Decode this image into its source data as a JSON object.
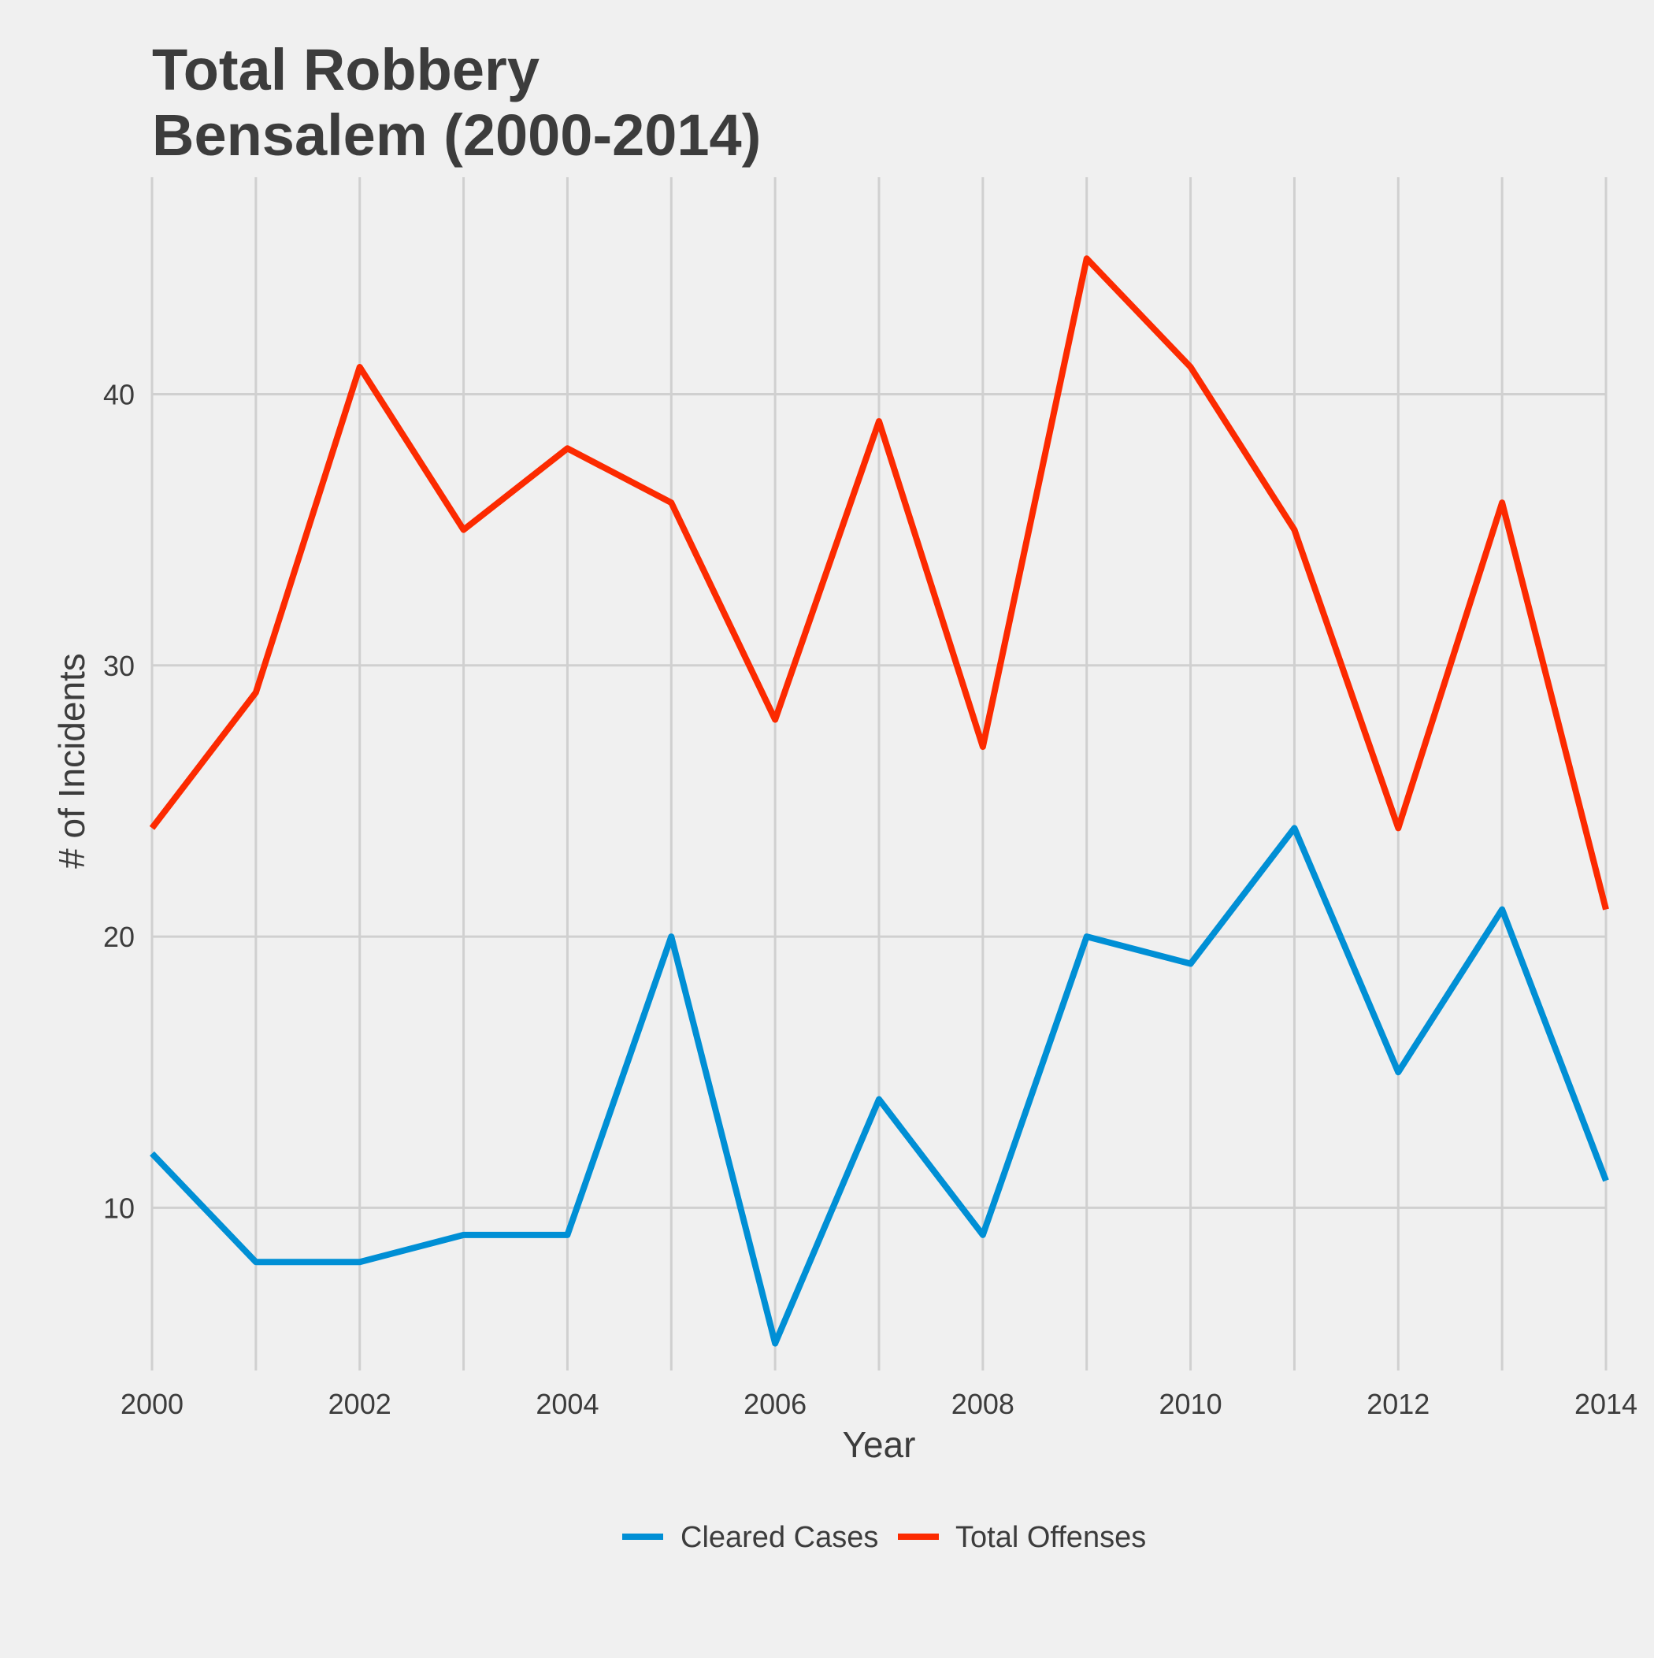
{
  "chart_data": {
    "type": "line",
    "title_lines": [
      "Total Robbery",
      "Bensalem (2000-2014)"
    ],
    "xlabel": "Year",
    "ylabel": "# of Incidents",
    "x": [
      2000,
      2001,
      2002,
      2003,
      2004,
      2005,
      2006,
      2007,
      2008,
      2009,
      2010,
      2011,
      2012,
      2013,
      2014
    ],
    "x_ticks": [
      "2000",
      "2002",
      "2004",
      "2006",
      "2008",
      "2010",
      "2012",
      "2014"
    ],
    "y_ticks": [
      "10",
      "20",
      "30",
      "40"
    ],
    "xlim": [
      2000,
      2014
    ],
    "ylim": [
      4,
      48
    ],
    "grid": true,
    "legend_position": "bottom",
    "series": [
      {
        "name": "Cleared Cases",
        "color": "#008fd5",
        "values": [
          12,
          8,
          8,
          9,
          9,
          20,
          5,
          14,
          9,
          20,
          19,
          24,
          15,
          21,
          11
        ]
      },
      {
        "name": "Total Offenses",
        "color": "#fc2a00",
        "values": [
          24,
          29,
          41,
          35,
          38,
          36,
          28,
          39,
          27,
          45,
          41,
          35,
          24,
          36,
          21
        ]
      }
    ]
  }
}
